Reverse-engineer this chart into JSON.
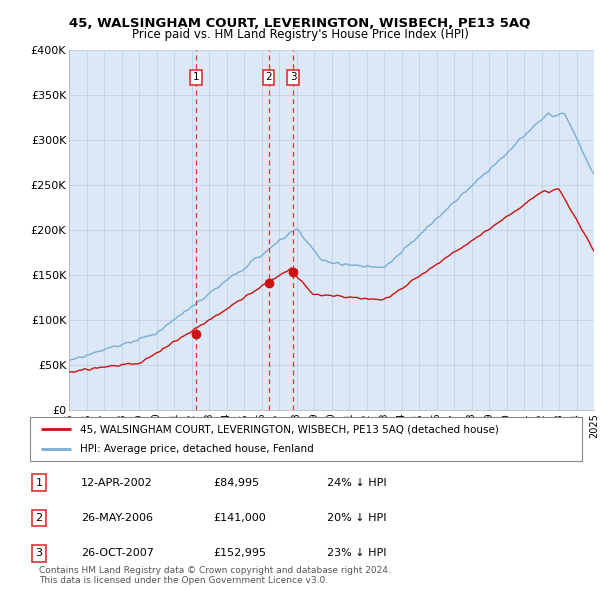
{
  "title": "45, WALSINGHAM COURT, LEVERINGTON, WISBECH, PE13 5AQ",
  "subtitle": "Price paid vs. HM Land Registry's House Price Index (HPI)",
  "yticks": [
    0,
    50000,
    100000,
    150000,
    200000,
    250000,
    300000,
    350000,
    400000
  ],
  "ytick_labels": [
    "£0",
    "£50K",
    "£100K",
    "£150K",
    "£200K",
    "£250K",
    "£300K",
    "£350K",
    "£400K"
  ],
  "ylim": [
    0,
    400000
  ],
  "x_start_year": 1995,
  "x_end_year": 2025,
  "hpi_color": "#7aadd4",
  "price_color": "#cc1111",
  "vline_color": "#dd3333",
  "plot_bg_color": "#dce8f5",
  "transactions": [
    {
      "date_num": 2002.28,
      "price": 84995,
      "label": "1"
    },
    {
      "date_num": 2006.4,
      "price": 141000,
      "label": "2"
    },
    {
      "date_num": 2007.82,
      "price": 152995,
      "label": "3"
    }
  ],
  "legend_line1": "45, WALSINGHAM COURT, LEVERINGTON, WISBECH, PE13 5AQ (detached house)",
  "legend_line2": "HPI: Average price, detached house, Fenland",
  "table_rows": [
    {
      "num": "1",
      "date": "12-APR-2002",
      "price": "£84,995",
      "pct": "24% ↓ HPI"
    },
    {
      "num": "2",
      "date": "26-MAY-2006",
      "price": "£141,000",
      "pct": "20% ↓ HPI"
    },
    {
      "num": "3",
      "date": "26-OCT-2007",
      "price": "£152,995",
      "pct": "23% ↓ HPI"
    }
  ],
  "footer": "Contains HM Land Registry data © Crown copyright and database right 2024.\nThis data is licensed under the Open Government Licence v3.0.",
  "bg_color": "#ffffff",
  "grid_color": "#b8cfe8"
}
